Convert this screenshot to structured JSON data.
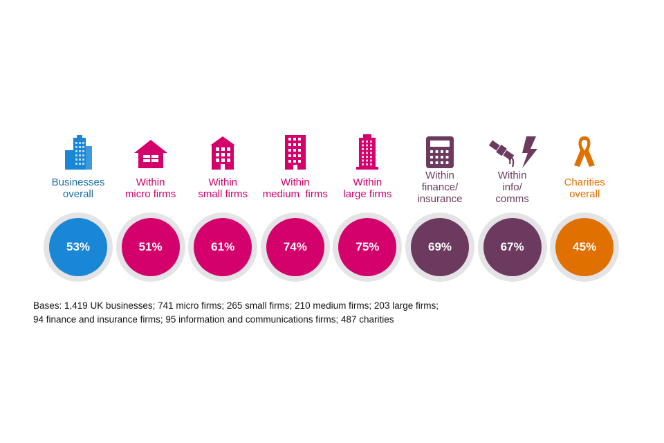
{
  "chart_data": {
    "type": "icon-infographic",
    "categories": [
      {
        "label_lines": [
          "Businesses",
          "overall"
        ],
        "value": 53,
        "value_label": "53%",
        "color": "#1a87d6",
        "label_color": "#1c6ea3",
        "icon": "office-buildings-icon"
      },
      {
        "label_lines": [
          "Within",
          "micro firms"
        ],
        "value": 51,
        "value_label": "51%",
        "color": "#d4006b",
        "label_color": "#d4006b",
        "icon": "house-icon"
      },
      {
        "label_lines": [
          "Within",
          "small firms"
        ],
        "value": 61,
        "value_label": "61%",
        "color": "#d4006b",
        "label_color": "#d4006b",
        "icon": "small-building-icon"
      },
      {
        "label_lines": [
          "Within",
          "medium  firms"
        ],
        "value": 74,
        "value_label": "74%",
        "color": "#d4006b",
        "label_color": "#d4006b",
        "icon": "medium-building-icon"
      },
      {
        "label_lines": [
          "Within",
          "large firms"
        ],
        "value": 75,
        "value_label": "75%",
        "color": "#d4006b",
        "label_color": "#d4006b",
        "icon": "tower-building-icon"
      },
      {
        "label_lines": [
          "Within",
          "finance/",
          "insurance"
        ],
        "value": 69,
        "value_label": "69%",
        "color": "#6b3a5e",
        "label_color": "#6b3a5e",
        "icon": "calculator-icon"
      },
      {
        "label_lines": [
          "Within",
          "info/",
          "comms"
        ],
        "value": 67,
        "value_label": "67%",
        "color": "#6b3a5e",
        "label_color": "#6b3a5e",
        "icon": "satellite-lightning-icon"
      },
      {
        "label_lines": [
          "Charities",
          "overall"
        ],
        "value": 45,
        "value_label": "45%",
        "color": "#e07000",
        "label_color": "#e07000",
        "icon": "awareness-ribbon-icon"
      }
    ]
  },
  "bases": {
    "line1": "Bases: 1,419 UK businesses; 741 micro firms; 265 small firms; 210 medium firms; 203 large firms;",
    "line2": "94 finance and insurance firms; 95 information and communications firms; 487 charities"
  },
  "colors": {
    "ring": "#e4e3e6"
  }
}
